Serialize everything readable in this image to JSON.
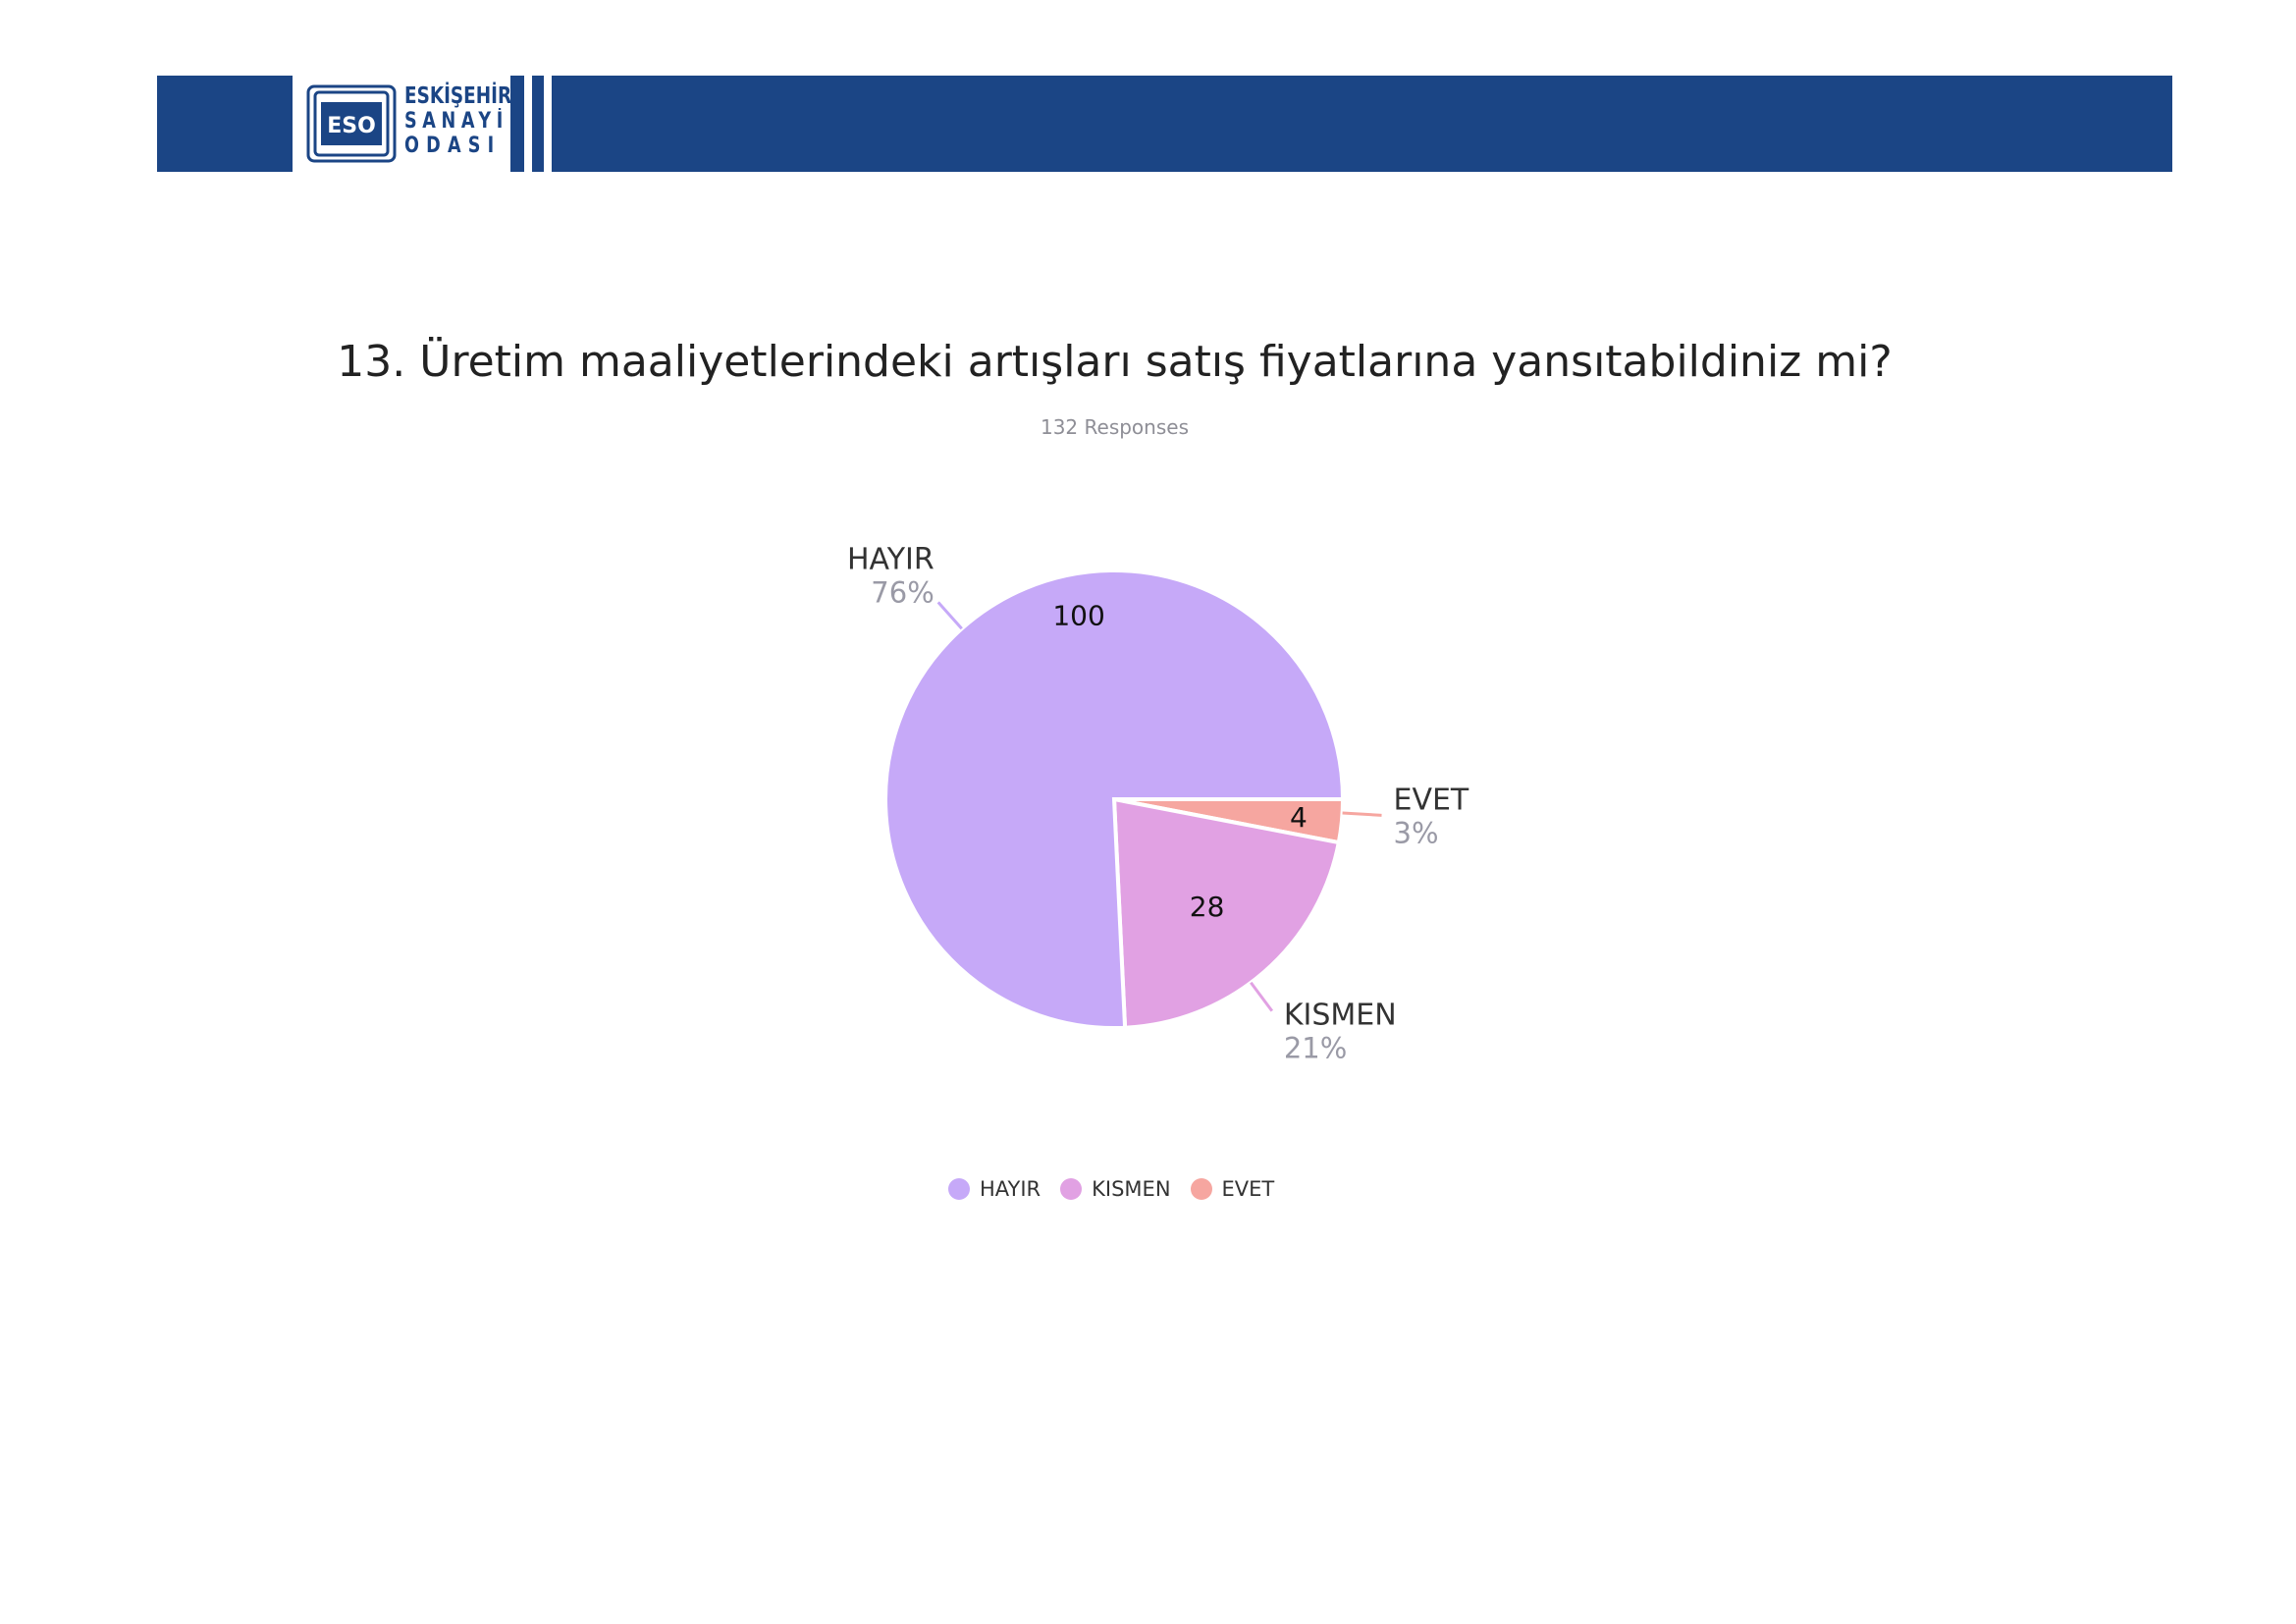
{
  "logo": {
    "emblem_text": "ESO",
    "line1": "ESKİŞEHİR",
    "line2": "SANAYİ",
    "line3": "ODASI"
  },
  "colors": {
    "header": "#1b4585",
    "hayir": "#c6a9f8",
    "kismen": "#e1a1e3",
    "evet": "#f6a6a0"
  },
  "title": "13. Üretim maaliyetlerindeki artışları satış fiyatlarına yansıtabildiniz mi?",
  "subtitle": "132 Responses",
  "chart_data": {
    "type": "pie",
    "title": "13. Üretim maaliyetlerindeki artışları satış fiyatlarına yansıtabildiniz mi?",
    "subtitle": "132 Responses",
    "categories": [
      "HAYIR",
      "KISMEN",
      "EVET"
    ],
    "values": [
      100,
      28,
      4
    ],
    "percent_labels": [
      "76%",
      "21%",
      "3%"
    ],
    "colors": [
      "#c6a9f8",
      "#e1a1e3",
      "#f6a6a0"
    ],
    "legend": "bottom"
  }
}
